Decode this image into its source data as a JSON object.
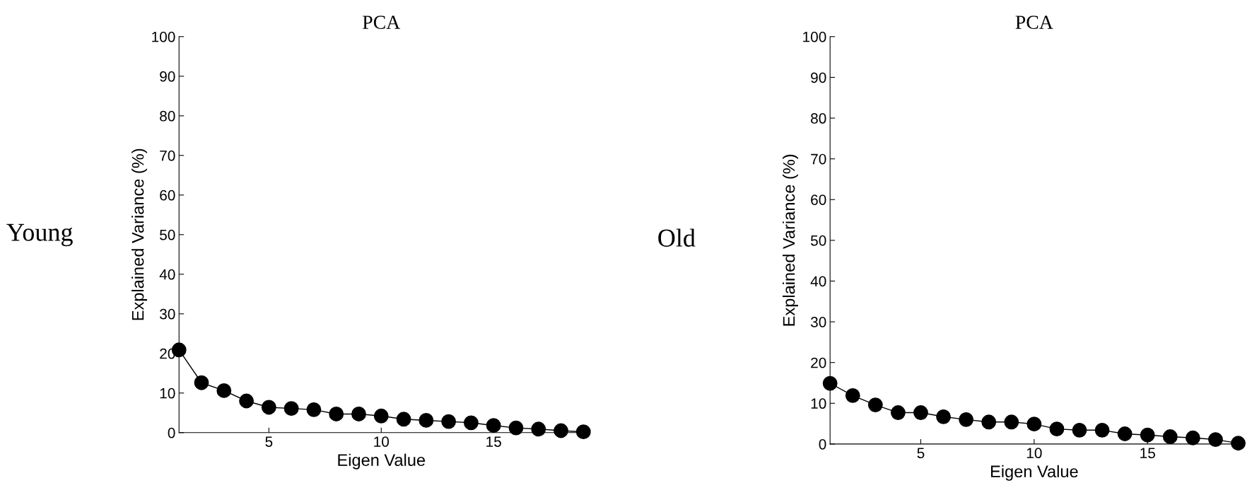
{
  "chart_data": [
    {
      "type": "line",
      "title": "PCA",
      "xlabel": "Eigen Value",
      "ylabel": "Explained Variance (%)",
      "annotations": [
        "Young"
      ],
      "x": [
        1,
        2,
        3,
        4,
        5,
        6,
        7,
        8,
        9,
        10,
        11,
        12,
        13,
        14,
        15,
        16,
        17,
        18,
        19
      ],
      "series": [
        {
          "color": "#000000",
          "values": [
            20.9,
            12.6,
            10.6,
            8.0,
            6.4,
            6.1,
            5.8,
            4.7,
            4.7,
            4.2,
            3.4,
            3.1,
            2.8,
            2.5,
            1.8,
            1.2,
            0.9,
            0.5,
            0.2
          ]
        }
      ],
      "xlim": [
        1,
        19
      ],
      "xticks": [
        5,
        10,
        15
      ],
      "ylim": [
        0,
        100
      ],
      "yticks": [
        0,
        10,
        20,
        30,
        40,
        50,
        60,
        70,
        80,
        90,
        100
      ],
      "marker": "circle",
      "line_style": "solid",
      "grid": false,
      "legend": false
    },
    {
      "type": "line",
      "title": "PCA",
      "xlabel": "Eigen Value",
      "ylabel": "Explained Variance (%)",
      "annotations": [
        "Old"
      ],
      "x": [
        1,
        2,
        3,
        4,
        5,
        6,
        7,
        8,
        9,
        10,
        11,
        12,
        13,
        14,
        15,
        16,
        17,
        18,
        19
      ],
      "series": [
        {
          "color": "#000000",
          "values": [
            14.9,
            11.9,
            9.6,
            7.7,
            7.7,
            6.7,
            6.0,
            5.4,
            5.4,
            4.9,
            3.7,
            3.4,
            3.4,
            2.5,
            2.2,
            1.8,
            1.5,
            1.1,
            0.2
          ]
        }
      ],
      "xlim": [
        1,
        19
      ],
      "xticks": [
        5,
        10,
        15
      ],
      "ylim": [
        0,
        100
      ],
      "yticks": [
        0,
        10,
        20,
        30,
        40,
        50,
        60,
        70,
        80,
        90,
        100
      ],
      "marker": "circle",
      "line_style": "solid",
      "grid": false,
      "legend": false
    }
  ]
}
